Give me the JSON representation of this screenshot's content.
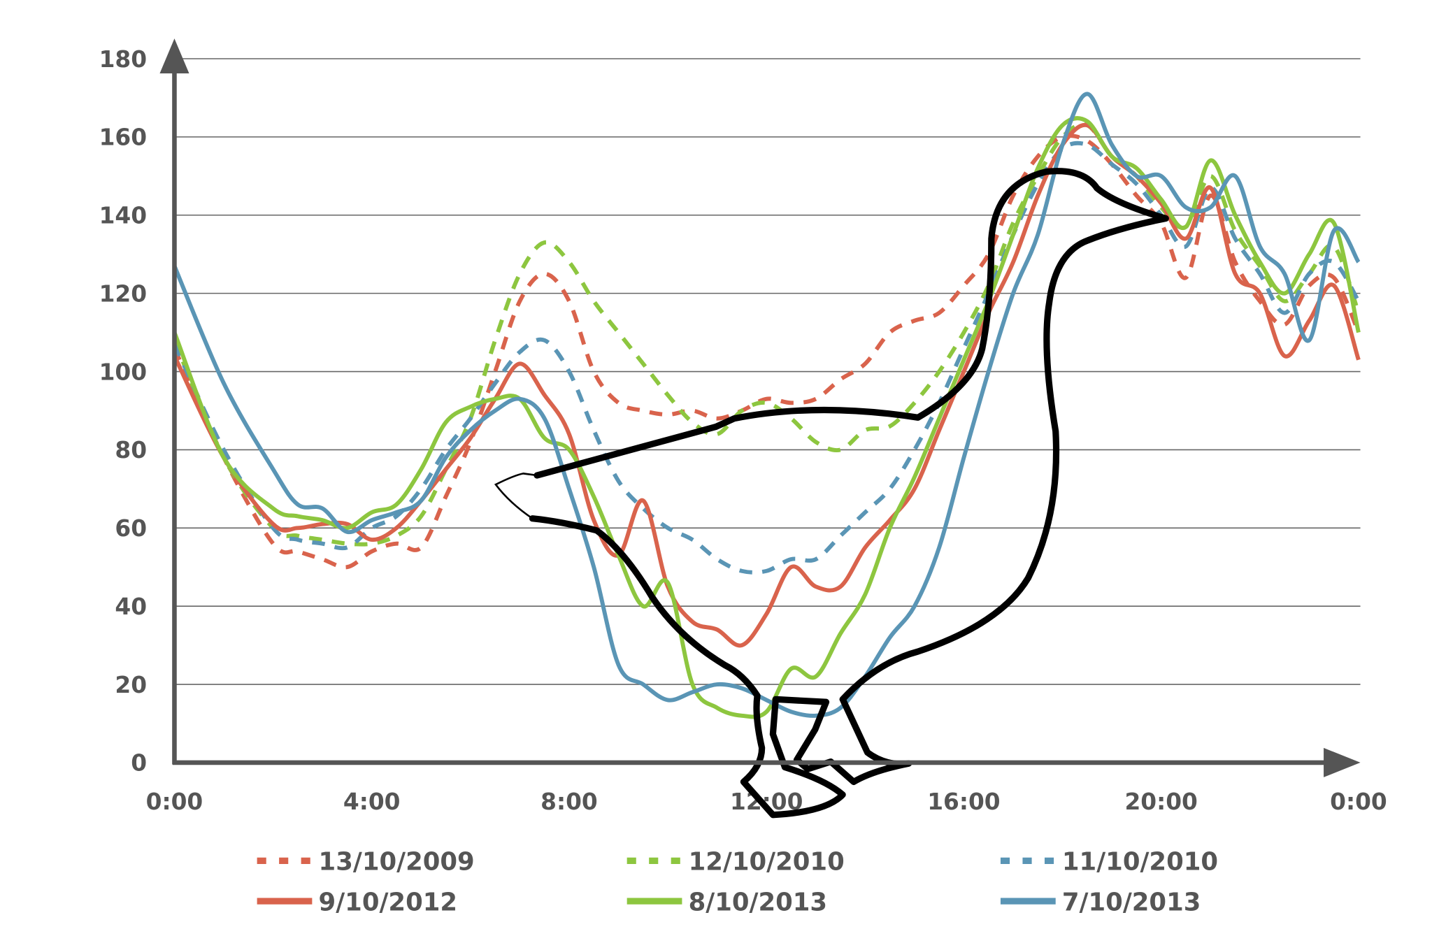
{
  "chart_data": {
    "type": "line",
    "title": "",
    "xlabel": "",
    "ylabel": "",
    "xlim": [
      0,
      24
    ],
    "ylim": [
      0,
      180
    ],
    "grid": true,
    "legend_position": "bottom",
    "x_tick_labels": [
      "0:00",
      "4:00",
      "8:00",
      "12:00",
      "16:00",
      "20:00",
      "0:00"
    ],
    "y_ticks": [
      0,
      20,
      40,
      60,
      80,
      100,
      120,
      140,
      160,
      180
    ],
    "x_hours": [
      0,
      1,
      2,
      2.5,
      3,
      3.5,
      4,
      4.5,
      5,
      5.5,
      6,
      6.5,
      7,
      7.5,
      8,
      8.5,
      9,
      9.5,
      10,
      10.5,
      11,
      11.5,
      12,
      12.5,
      13,
      13.5,
      14,
      14.5,
      15,
      15.5,
      16,
      16.5,
      17,
      17.5,
      18,
      18.5,
      19,
      19.5,
      20,
      20.5,
      21,
      21.5,
      22,
      22.5,
      23,
      23.5,
      24
    ],
    "series": [
      {
        "name": "13/10/2009",
        "color": "#d9634c",
        "dashed": true,
        "values": [
          106,
          78,
          56,
          54,
          52,
          50,
          54,
          56,
          55,
          68,
          82,
          100,
          118,
          125,
          118,
          100,
          92,
          90,
          89,
          90,
          88,
          90,
          93,
          92,
          93,
          98,
          102,
          110,
          113,
          115,
          122,
          130,
          145,
          155,
          160,
          159,
          153,
          145,
          138,
          124,
          145,
          128,
          118,
          112,
          122,
          124,
          110
        ]
      },
      {
        "name": "12/10/2010",
        "color": "#8dc63f",
        "dashed": true,
        "values": [
          108,
          78,
          60,
          58,
          57,
          56,
          56,
          58,
          63,
          75,
          88,
          108,
          125,
          133,
          128,
          118,
          110,
          102,
          94,
          87,
          84,
          90,
          92,
          88,
          82,
          80,
          85,
          86,
          92,
          100,
          110,
          122,
          138,
          150,
          160,
          163,
          155,
          150,
          142,
          137,
          150,
          136,
          127,
          118,
          125,
          132,
          115
        ]
      },
      {
        "name": "11/10/2010",
        "color": "#5a95b5",
        "dashed": true,
        "values": [
          107,
          80,
          60,
          57,
          56,
          55,
          60,
          63,
          70,
          80,
          88,
          97,
          105,
          108,
          100,
          85,
          72,
          65,
          60,
          57,
          52,
          49,
          49,
          52,
          52,
          58,
          64,
          70,
          80,
          92,
          106,
          120,
          135,
          148,
          157,
          158,
          153,
          148,
          140,
          132,
          147,
          134,
          125,
          115,
          125,
          128,
          118
        ]
      },
      {
        "name": "9/10/2012",
        "color": "#d9634c",
        "dashed": false,
        "values": [
          104,
          78,
          61,
          60,
          61,
          61,
          57,
          60,
          67,
          75,
          83,
          93,
          102,
          94,
          84,
          62,
          53,
          67,
          45,
          36,
          34,
          30,
          38,
          50,
          45,
          45,
          55,
          62,
          70,
          85,
          100,
          115,
          128,
          145,
          158,
          163,
          155,
          150,
          143,
          134,
          147,
          125,
          120,
          104,
          113,
          122,
          103
        ]
      },
      {
        "name": "8/10/2013",
        "color": "#8dc63f",
        "dashed": false,
        "values": [
          110,
          78,
          65,
          63,
          62,
          60,
          64,
          66,
          75,
          87,
          91,
          93,
          93,
          83,
          80,
          68,
          53,
          40,
          46,
          20,
          14,
          12,
          13,
          24,
          22,
          33,
          43,
          60,
          73,
          88,
          103,
          118,
          135,
          152,
          163,
          164,
          155,
          152,
          144,
          137,
          154,
          140,
          128,
          120,
          130,
          138,
          110
        ]
      },
      {
        "name": "7/10/2013",
        "color": "#5a95b5",
        "dashed": false,
        "values": [
          127,
          97,
          75,
          66,
          65,
          59,
          62,
          64,
          67,
          78,
          85,
          90,
          93,
          88,
          70,
          50,
          25,
          20,
          16,
          18,
          20,
          19,
          16,
          13,
          12,
          14,
          22,
          32,
          40,
          55,
          78,
          100,
          120,
          135,
          158,
          171,
          158,
          150,
          150,
          142,
          142,
          150,
          132,
          125,
          108,
          136,
          128
        ]
      }
    ]
  }
}
